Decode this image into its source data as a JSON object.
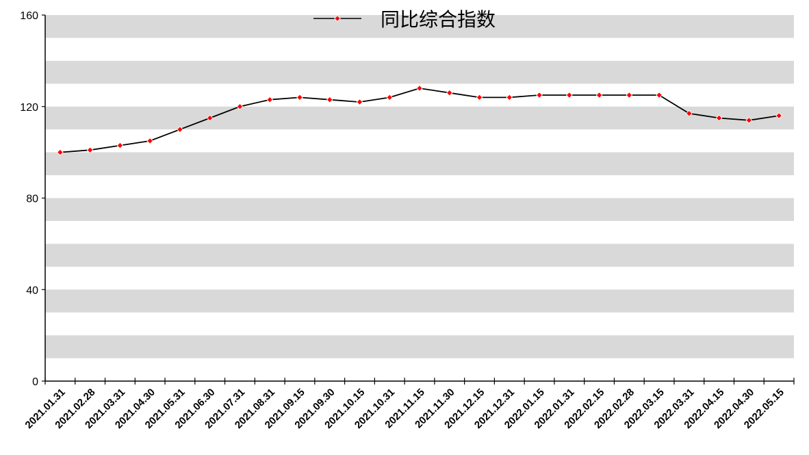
{
  "chart_data": {
    "type": "line",
    "title": "",
    "xlabel": "",
    "ylabel": "",
    "ylim": [
      0,
      160
    ],
    "yticks": [
      0,
      40,
      80,
      120,
      160
    ],
    "grid": "horizontal banded",
    "legend_position": "top-center",
    "categories": [
      "2021.01.31",
      "2021.02.28",
      "2021.03.31",
      "2021.04.30",
      "2021.05.31",
      "2021.06.30",
      "2021.07.31",
      "2021.08.31",
      "2021.09.15",
      "2021.09.30",
      "2021.10.15",
      "2021.10.31",
      "2021.11.15",
      "2021.11.30",
      "2021.12.15",
      "2021.12.31",
      "2022.01.15",
      "2022.01.31",
      "2022.02.15",
      "2022.02.28",
      "2022.03.15",
      "2022.03.31",
      "2022.04.15",
      "2022.04.30",
      "2022.05.15"
    ],
    "series": [
      {
        "name": "同比综合指数",
        "values": [
          100,
          101,
          103,
          105,
          110,
          115,
          120,
          123,
          124,
          123,
          122,
          124,
          128,
          126,
          124,
          124,
          125,
          125,
          125,
          125,
          125,
          117,
          115,
          114,
          116
        ]
      }
    ],
    "colors": {
      "line": "#000000",
      "marker": "#ff0000",
      "band": "#d9d9d9"
    }
  }
}
